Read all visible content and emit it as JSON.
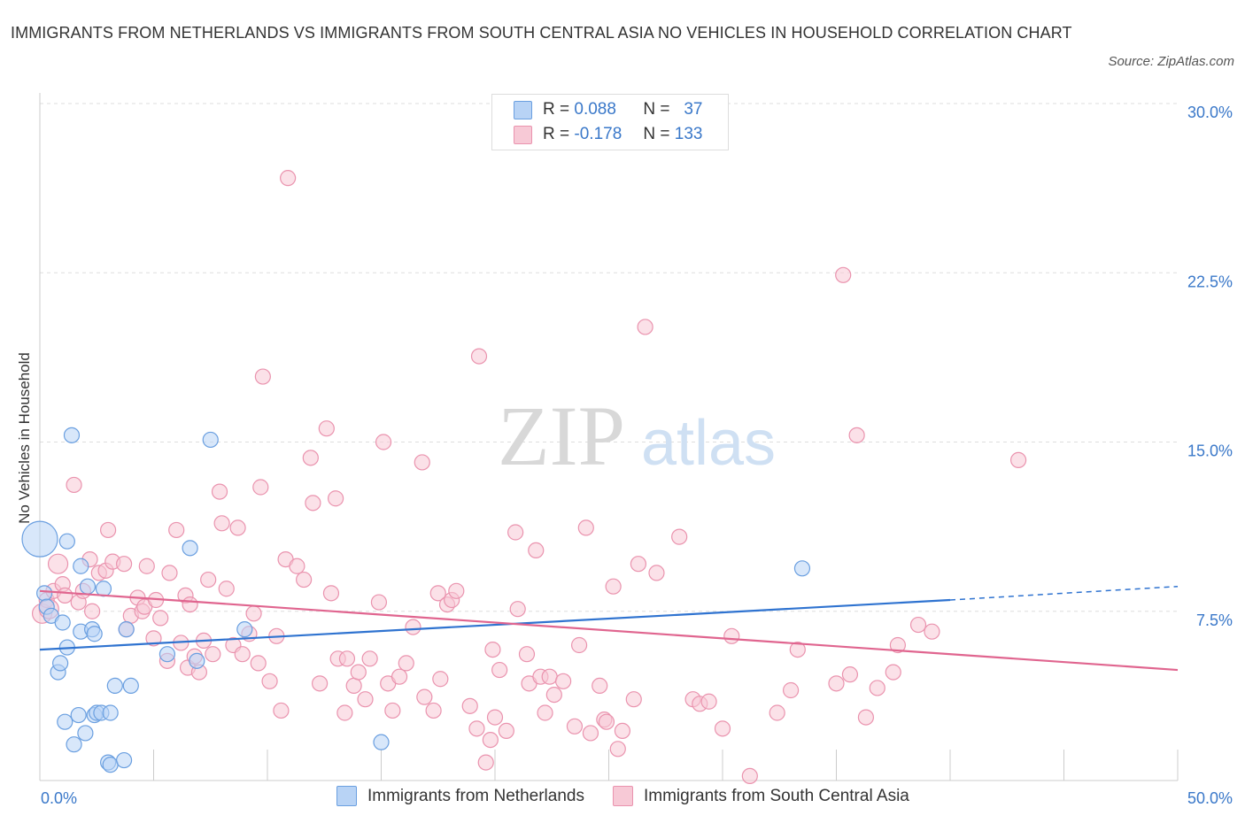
{
  "header": {
    "title": "IMMIGRANTS FROM NETHERLANDS VS IMMIGRANTS FROM SOUTH CENTRAL ASIA NO VEHICLES IN HOUSEHOLD CORRELATION CHART",
    "source": "Source: ZipAtlas.com"
  },
  "legend": {
    "r_label": "R =",
    "n_label": "N =",
    "rows": [
      {
        "r": "0.088",
        "n": "37"
      },
      {
        "r": "-0.178",
        "n": "133"
      }
    ]
  },
  "watermark": {
    "zip": "ZIP",
    "atlas": "atlas"
  },
  "colors": {
    "blue_fill": "#b8d3f5",
    "blue_stroke": "#6a9fe0",
    "blue_line": "#2f73d0",
    "pink_fill": "#f7c9d6",
    "pink_stroke": "#ea93ae",
    "pink_line": "#e0658f",
    "tick_text": "#3a78c9",
    "grid": "#dddddd"
  },
  "chart_data": {
    "type": "scatter",
    "title": "IMMIGRANTS FROM NETHERLANDS VS IMMIGRANTS FROM SOUTH CENTRAL ASIA NO VEHICLES IN HOUSEHOLD CORRELATION CHART",
    "xlabel": "",
    "ylabel": "No Vehicles in Household",
    "xlim": [
      0,
      50
    ],
    "ylim": [
      0,
      30
    ],
    "x_tick_labels": [
      "0.0%",
      "50.0%"
    ],
    "y_ticks": [
      7.5,
      15.0,
      22.5,
      30.0
    ],
    "y_tick_labels": [
      "7.5%",
      "15.0%",
      "22.5%",
      "30.0%"
    ],
    "grid": "horizontal dashed",
    "legend_position": "top-center",
    "series": [
      {
        "name": "Immigrants from Netherlands",
        "color": "#6a9fe0",
        "trend": {
          "x0": 0,
          "y0": 5.8,
          "x1": 40,
          "y1": 8.0,
          "x_dashed_end": 50,
          "y_dashed_end": 8.6
        },
        "points": [
          [
            0.0,
            10.7,
            3
          ],
          [
            0.2,
            8.3,
            1
          ],
          [
            0.3,
            7.7,
            1
          ],
          [
            0.5,
            7.3,
            1
          ],
          [
            0.8,
            4.8,
            1
          ],
          [
            0.9,
            5.2,
            1
          ],
          [
            1.2,
            10.6,
            1
          ],
          [
            1.0,
            7.0,
            1
          ],
          [
            1.1,
            2.6,
            1
          ],
          [
            1.2,
            5.9,
            1
          ],
          [
            1.4,
            15.3,
            1
          ],
          [
            1.5,
            1.6,
            1
          ],
          [
            1.7,
            2.9,
            1
          ],
          [
            1.8,
            9.5,
            1
          ],
          [
            1.8,
            6.6,
            1
          ],
          [
            2.0,
            2.1,
            1
          ],
          [
            2.1,
            8.6,
            1
          ],
          [
            2.3,
            6.7,
            1
          ],
          [
            2.4,
            6.5,
            1
          ],
          [
            2.4,
            2.9,
            1
          ],
          [
            2.5,
            3.0,
            1
          ],
          [
            2.7,
            3.0,
            1
          ],
          [
            2.8,
            8.5,
            1
          ],
          [
            3.0,
            0.8,
            1
          ],
          [
            3.1,
            0.7,
            1
          ],
          [
            3.1,
            3.0,
            1
          ],
          [
            3.3,
            4.2,
            1
          ],
          [
            3.7,
            0.9,
            1
          ],
          [
            3.8,
            6.7,
            1
          ],
          [
            4.0,
            4.2,
            1
          ],
          [
            5.6,
            5.6,
            1
          ],
          [
            6.9,
            5.3,
            1
          ],
          [
            7.5,
            15.1,
            1
          ],
          [
            6.6,
            10.3,
            1
          ],
          [
            9.0,
            6.7,
            1
          ],
          [
            15.0,
            1.7,
            1
          ],
          [
            33.5,
            9.4,
            1
          ]
        ]
      },
      {
        "name": "Immigrants from South Central Asia",
        "color": "#ea93ae",
        "trend": {
          "x0": 0,
          "y0": 8.4,
          "x1": 50,
          "y1": 4.9
        },
        "points": [
          [
            0.1,
            7.4,
            2
          ],
          [
            0.3,
            8.0,
            1
          ],
          [
            0.4,
            7.6,
            2
          ],
          [
            0.6,
            8.4,
            1
          ],
          [
            0.8,
            9.6,
            2
          ],
          [
            1.0,
            8.7,
            1
          ],
          [
            1.1,
            8.2,
            1
          ],
          [
            1.5,
            13.1,
            1
          ],
          [
            1.7,
            7.9,
            1
          ],
          [
            1.9,
            8.4,
            1
          ],
          [
            2.2,
            9.8,
            1
          ],
          [
            2.3,
            7.5,
            1
          ],
          [
            2.6,
            9.2,
            1
          ],
          [
            2.9,
            9.3,
            1
          ],
          [
            3.0,
            11.1,
            1
          ],
          [
            3.2,
            9.7,
            1
          ],
          [
            3.7,
            9.6,
            1
          ],
          [
            3.8,
            6.7,
            1
          ],
          [
            4.0,
            7.3,
            1
          ],
          [
            4.3,
            8.1,
            1
          ],
          [
            4.5,
            7.5,
            1
          ],
          [
            4.6,
            7.7,
            1
          ],
          [
            4.7,
            9.5,
            1
          ],
          [
            5.0,
            6.3,
            1
          ],
          [
            5.1,
            8.0,
            1
          ],
          [
            5.3,
            7.2,
            1
          ],
          [
            5.6,
            5.3,
            1
          ],
          [
            5.7,
            9.2,
            1
          ],
          [
            6.0,
            11.1,
            1
          ],
          [
            6.2,
            6.1,
            1
          ],
          [
            6.4,
            8.2,
            1
          ],
          [
            6.5,
            5.0,
            1
          ],
          [
            6.6,
            7.8,
            1
          ],
          [
            6.8,
            5.5,
            1
          ],
          [
            7.0,
            4.8,
            1
          ],
          [
            7.2,
            6.2,
            1
          ],
          [
            7.4,
            8.9,
            1
          ],
          [
            7.6,
            5.6,
            1
          ],
          [
            8.0,
            11.4,
            1
          ],
          [
            8.2,
            8.5,
            1
          ],
          [
            8.5,
            6.0,
            1
          ],
          [
            8.7,
            11.2,
            1
          ],
          [
            8.9,
            5.6,
            1
          ],
          [
            9.2,
            6.5,
            1
          ],
          [
            9.4,
            7.4,
            1
          ],
          [
            9.7,
            13.0,
            1
          ],
          [
            9.6,
            5.2,
            1
          ],
          [
            9.8,
            17.9,
            1
          ],
          [
            10.1,
            4.4,
            1
          ],
          [
            10.4,
            6.4,
            1
          ],
          [
            10.6,
            3.1,
            1
          ],
          [
            10.8,
            9.8,
            1
          ],
          [
            11.3,
            9.5,
            1
          ],
          [
            11.6,
            8.9,
            1
          ],
          [
            11.9,
            14.3,
            1
          ],
          [
            12.0,
            12.3,
            1
          ],
          [
            12.3,
            4.3,
            1
          ],
          [
            12.6,
            15.6,
            1
          ],
          [
            12.8,
            8.3,
            1
          ],
          [
            13.0,
            12.5,
            1
          ],
          [
            13.1,
            5.4,
            1
          ],
          [
            13.4,
            3.0,
            1
          ],
          [
            13.5,
            5.4,
            1
          ],
          [
            13.8,
            4.2,
            1
          ],
          [
            14.0,
            4.8,
            1
          ],
          [
            14.3,
            3.6,
            1
          ],
          [
            14.5,
            5.4,
            1
          ],
          [
            14.9,
            7.9,
            1
          ],
          [
            15.1,
            15.0,
            1
          ],
          [
            15.3,
            4.3,
            1
          ],
          [
            15.5,
            3.1,
            1
          ],
          [
            15.8,
            4.6,
            1
          ],
          [
            16.1,
            5.2,
            1
          ],
          [
            16.4,
            6.8,
            1
          ],
          [
            16.8,
            14.1,
            1
          ],
          [
            16.9,
            3.7,
            1
          ],
          [
            17.3,
            3.1,
            1
          ],
          [
            17.5,
            8.3,
            1
          ],
          [
            17.6,
            4.5,
            1
          ],
          [
            17.9,
            7.8,
            1
          ],
          [
            18.1,
            8.0,
            1
          ],
          [
            18.3,
            8.4,
            1
          ],
          [
            18.9,
            3.3,
            1
          ],
          [
            19.2,
            2.3,
            1
          ],
          [
            19.3,
            18.8,
            1
          ],
          [
            19.6,
            0.8,
            1
          ],
          [
            19.8,
            1.8,
            1
          ],
          [
            19.9,
            5.8,
            1
          ],
          [
            20.2,
            4.9,
            1
          ],
          [
            20.0,
            2.8,
            1
          ],
          [
            20.5,
            2.2,
            1
          ],
          [
            20.9,
            11.0,
            1
          ],
          [
            21.0,
            7.6,
            1
          ],
          [
            21.4,
            5.6,
            1
          ],
          [
            21.5,
            4.3,
            1
          ],
          [
            21.8,
            10.2,
            1
          ],
          [
            22.0,
            4.6,
            1
          ],
          [
            22.2,
            3.0,
            1
          ],
          [
            22.4,
            4.6,
            1
          ],
          [
            22.6,
            3.8,
            1
          ],
          [
            23.0,
            4.4,
            1
          ],
          [
            23.5,
            2.4,
            1
          ],
          [
            23.7,
            6.0,
            1
          ],
          [
            24.0,
            11.2,
            1
          ],
          [
            24.2,
            2.1,
            1
          ],
          [
            24.6,
            4.2,
            1
          ],
          [
            24.8,
            2.7,
            1
          ],
          [
            24.9,
            2.6,
            1
          ],
          [
            25.2,
            8.6,
            1
          ],
          [
            25.4,
            1.4,
            1
          ],
          [
            25.6,
            2.2,
            1
          ],
          [
            26.1,
            3.6,
            1
          ],
          [
            26.3,
            9.6,
            1
          ],
          [
            26.6,
            20.1,
            1
          ],
          [
            27.1,
            9.2,
            1
          ],
          [
            28.1,
            10.8,
            1
          ],
          [
            28.7,
            3.6,
            1
          ],
          [
            29.0,
            3.4,
            1
          ],
          [
            29.4,
            3.5,
            1
          ],
          [
            30.0,
            2.3,
            1
          ],
          [
            30.4,
            6.4,
            1
          ],
          [
            31.2,
            0.2,
            1
          ],
          [
            32.4,
            3.0,
            1
          ],
          [
            33.0,
            4.0,
            1
          ],
          [
            33.3,
            5.8,
            1
          ],
          [
            35.0,
            4.3,
            1
          ],
          [
            35.3,
            22.4,
            1
          ],
          [
            35.6,
            4.7,
            1
          ],
          [
            35.9,
            15.3,
            1
          ],
          [
            36.3,
            2.8,
            1
          ],
          [
            36.8,
            4.1,
            1
          ],
          [
            37.5,
            4.8,
            1
          ],
          [
            37.7,
            6.0,
            1
          ],
          [
            38.6,
            6.9,
            1
          ],
          [
            39.2,
            6.6,
            1
          ],
          [
            43.0,
            14.2,
            1
          ],
          [
            10.9,
            26.7,
            1
          ],
          [
            7.9,
            12.8,
            1
          ]
        ]
      }
    ]
  },
  "bottom_legend": {
    "items": [
      "Immigrants from Netherlands",
      "Immigrants from South Central Asia"
    ]
  }
}
